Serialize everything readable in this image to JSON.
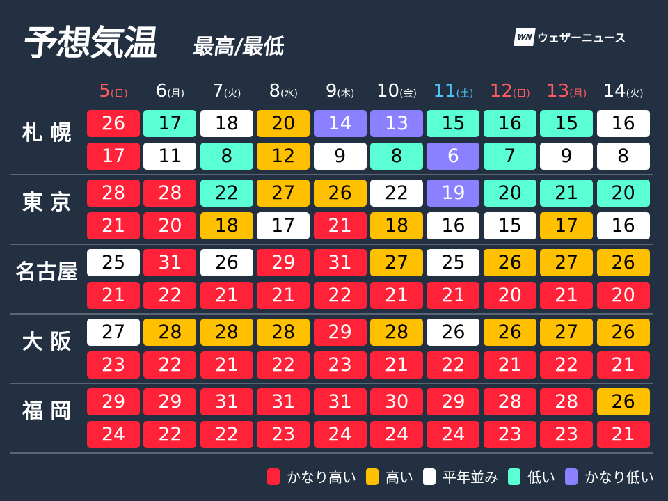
{
  "title": "予想気温",
  "subtitle": "最高/最低",
  "logo": {
    "mark": "WN",
    "text": "ウェザーニュース"
  },
  "colors": {
    "R": "#ff2238",
    "O": "#ffc000",
    "W": "#ffffff",
    "M": "#5affd4",
    "P": "#8b80ff",
    "bg": "#223041",
    "sunday": "#ff5a5f",
    "saturday": "#4fc3f7",
    "weekday": "#ffffff"
  },
  "dates": [
    {
      "day": "5",
      "wd": "(日)",
      "type": "sunday"
    },
    {
      "day": "6",
      "wd": "(月)",
      "type": "weekday"
    },
    {
      "day": "7",
      "wd": "(火)",
      "type": "weekday"
    },
    {
      "day": "8",
      "wd": "(水)",
      "type": "weekday"
    },
    {
      "day": "9",
      "wd": "(木)",
      "type": "weekday"
    },
    {
      "day": "10",
      "wd": "(金)",
      "type": "weekday"
    },
    {
      "day": "11",
      "wd": "(土)",
      "type": "saturday"
    },
    {
      "day": "12",
      "wd": "(日)",
      "type": "sunday"
    },
    {
      "day": "13",
      "wd": "(月)",
      "type": "sunday"
    },
    {
      "day": "14",
      "wd": "(火)",
      "type": "weekday"
    }
  ],
  "cities": [
    {
      "name": "札 幌",
      "high": [
        [
          26,
          "R"
        ],
        [
          17,
          "M"
        ],
        [
          18,
          "W"
        ],
        [
          20,
          "O"
        ],
        [
          14,
          "P"
        ],
        [
          13,
          "P"
        ],
        [
          15,
          "M"
        ],
        [
          16,
          "M"
        ],
        [
          15,
          "M"
        ],
        [
          16,
          "W"
        ]
      ],
      "low": [
        [
          17,
          "R"
        ],
        [
          11,
          "W"
        ],
        [
          8,
          "M"
        ],
        [
          12,
          "O"
        ],
        [
          9,
          "W"
        ],
        [
          8,
          "M"
        ],
        [
          6,
          "P"
        ],
        [
          7,
          "M"
        ],
        [
          9,
          "W"
        ],
        [
          8,
          "W"
        ]
      ]
    },
    {
      "name": "東 京",
      "high": [
        [
          28,
          "R"
        ],
        [
          28,
          "R"
        ],
        [
          22,
          "M"
        ],
        [
          27,
          "O"
        ],
        [
          26,
          "O"
        ],
        [
          22,
          "W"
        ],
        [
          19,
          "P"
        ],
        [
          20,
          "M"
        ],
        [
          21,
          "M"
        ],
        [
          20,
          "M"
        ]
      ],
      "low": [
        [
          21,
          "R"
        ],
        [
          20,
          "R"
        ],
        [
          18,
          "O"
        ],
        [
          17,
          "W"
        ],
        [
          21,
          "R"
        ],
        [
          18,
          "O"
        ],
        [
          16,
          "W"
        ],
        [
          15,
          "W"
        ],
        [
          17,
          "O"
        ],
        [
          16,
          "W"
        ]
      ]
    },
    {
      "name": "名古屋",
      "high": [
        [
          25,
          "W"
        ],
        [
          31,
          "R"
        ],
        [
          26,
          "W"
        ],
        [
          29,
          "R"
        ],
        [
          31,
          "R"
        ],
        [
          27,
          "O"
        ],
        [
          25,
          "W"
        ],
        [
          26,
          "O"
        ],
        [
          27,
          "O"
        ],
        [
          26,
          "O"
        ]
      ],
      "low": [
        [
          21,
          "R"
        ],
        [
          22,
          "R"
        ],
        [
          21,
          "R"
        ],
        [
          21,
          "R"
        ],
        [
          22,
          "R"
        ],
        [
          21,
          "R"
        ],
        [
          21,
          "R"
        ],
        [
          20,
          "R"
        ],
        [
          21,
          "R"
        ],
        [
          20,
          "R"
        ]
      ]
    },
    {
      "name": "大 阪",
      "high": [
        [
          27,
          "W"
        ],
        [
          28,
          "O"
        ],
        [
          28,
          "O"
        ],
        [
          28,
          "O"
        ],
        [
          29,
          "R"
        ],
        [
          28,
          "O"
        ],
        [
          26,
          "W"
        ],
        [
          26,
          "O"
        ],
        [
          27,
          "O"
        ],
        [
          26,
          "O"
        ]
      ],
      "low": [
        [
          23,
          "R"
        ],
        [
          22,
          "R"
        ],
        [
          21,
          "R"
        ],
        [
          22,
          "R"
        ],
        [
          23,
          "R"
        ],
        [
          21,
          "R"
        ],
        [
          22,
          "R"
        ],
        [
          21,
          "R"
        ],
        [
          22,
          "R"
        ],
        [
          21,
          "R"
        ]
      ]
    },
    {
      "name": "福 岡",
      "high": [
        [
          29,
          "R"
        ],
        [
          29,
          "R"
        ],
        [
          31,
          "R"
        ],
        [
          31,
          "R"
        ],
        [
          31,
          "R"
        ],
        [
          30,
          "R"
        ],
        [
          29,
          "R"
        ],
        [
          28,
          "R"
        ],
        [
          28,
          "R"
        ],
        [
          26,
          "O"
        ]
      ],
      "low": [
        [
          24,
          "R"
        ],
        [
          22,
          "R"
        ],
        [
          22,
          "R"
        ],
        [
          23,
          "R"
        ],
        [
          24,
          "R"
        ],
        [
          24,
          "R"
        ],
        [
          24,
          "R"
        ],
        [
          23,
          "R"
        ],
        [
          23,
          "R"
        ],
        [
          21,
          "R"
        ]
      ]
    }
  ],
  "legend": [
    {
      "label": "かなり高い",
      "key": "R"
    },
    {
      "label": "高い",
      "key": "O"
    },
    {
      "label": "平年並み",
      "key": "W"
    },
    {
      "label": "低い",
      "key": "M"
    },
    {
      "label": "かなり低い",
      "key": "P"
    }
  ]
}
